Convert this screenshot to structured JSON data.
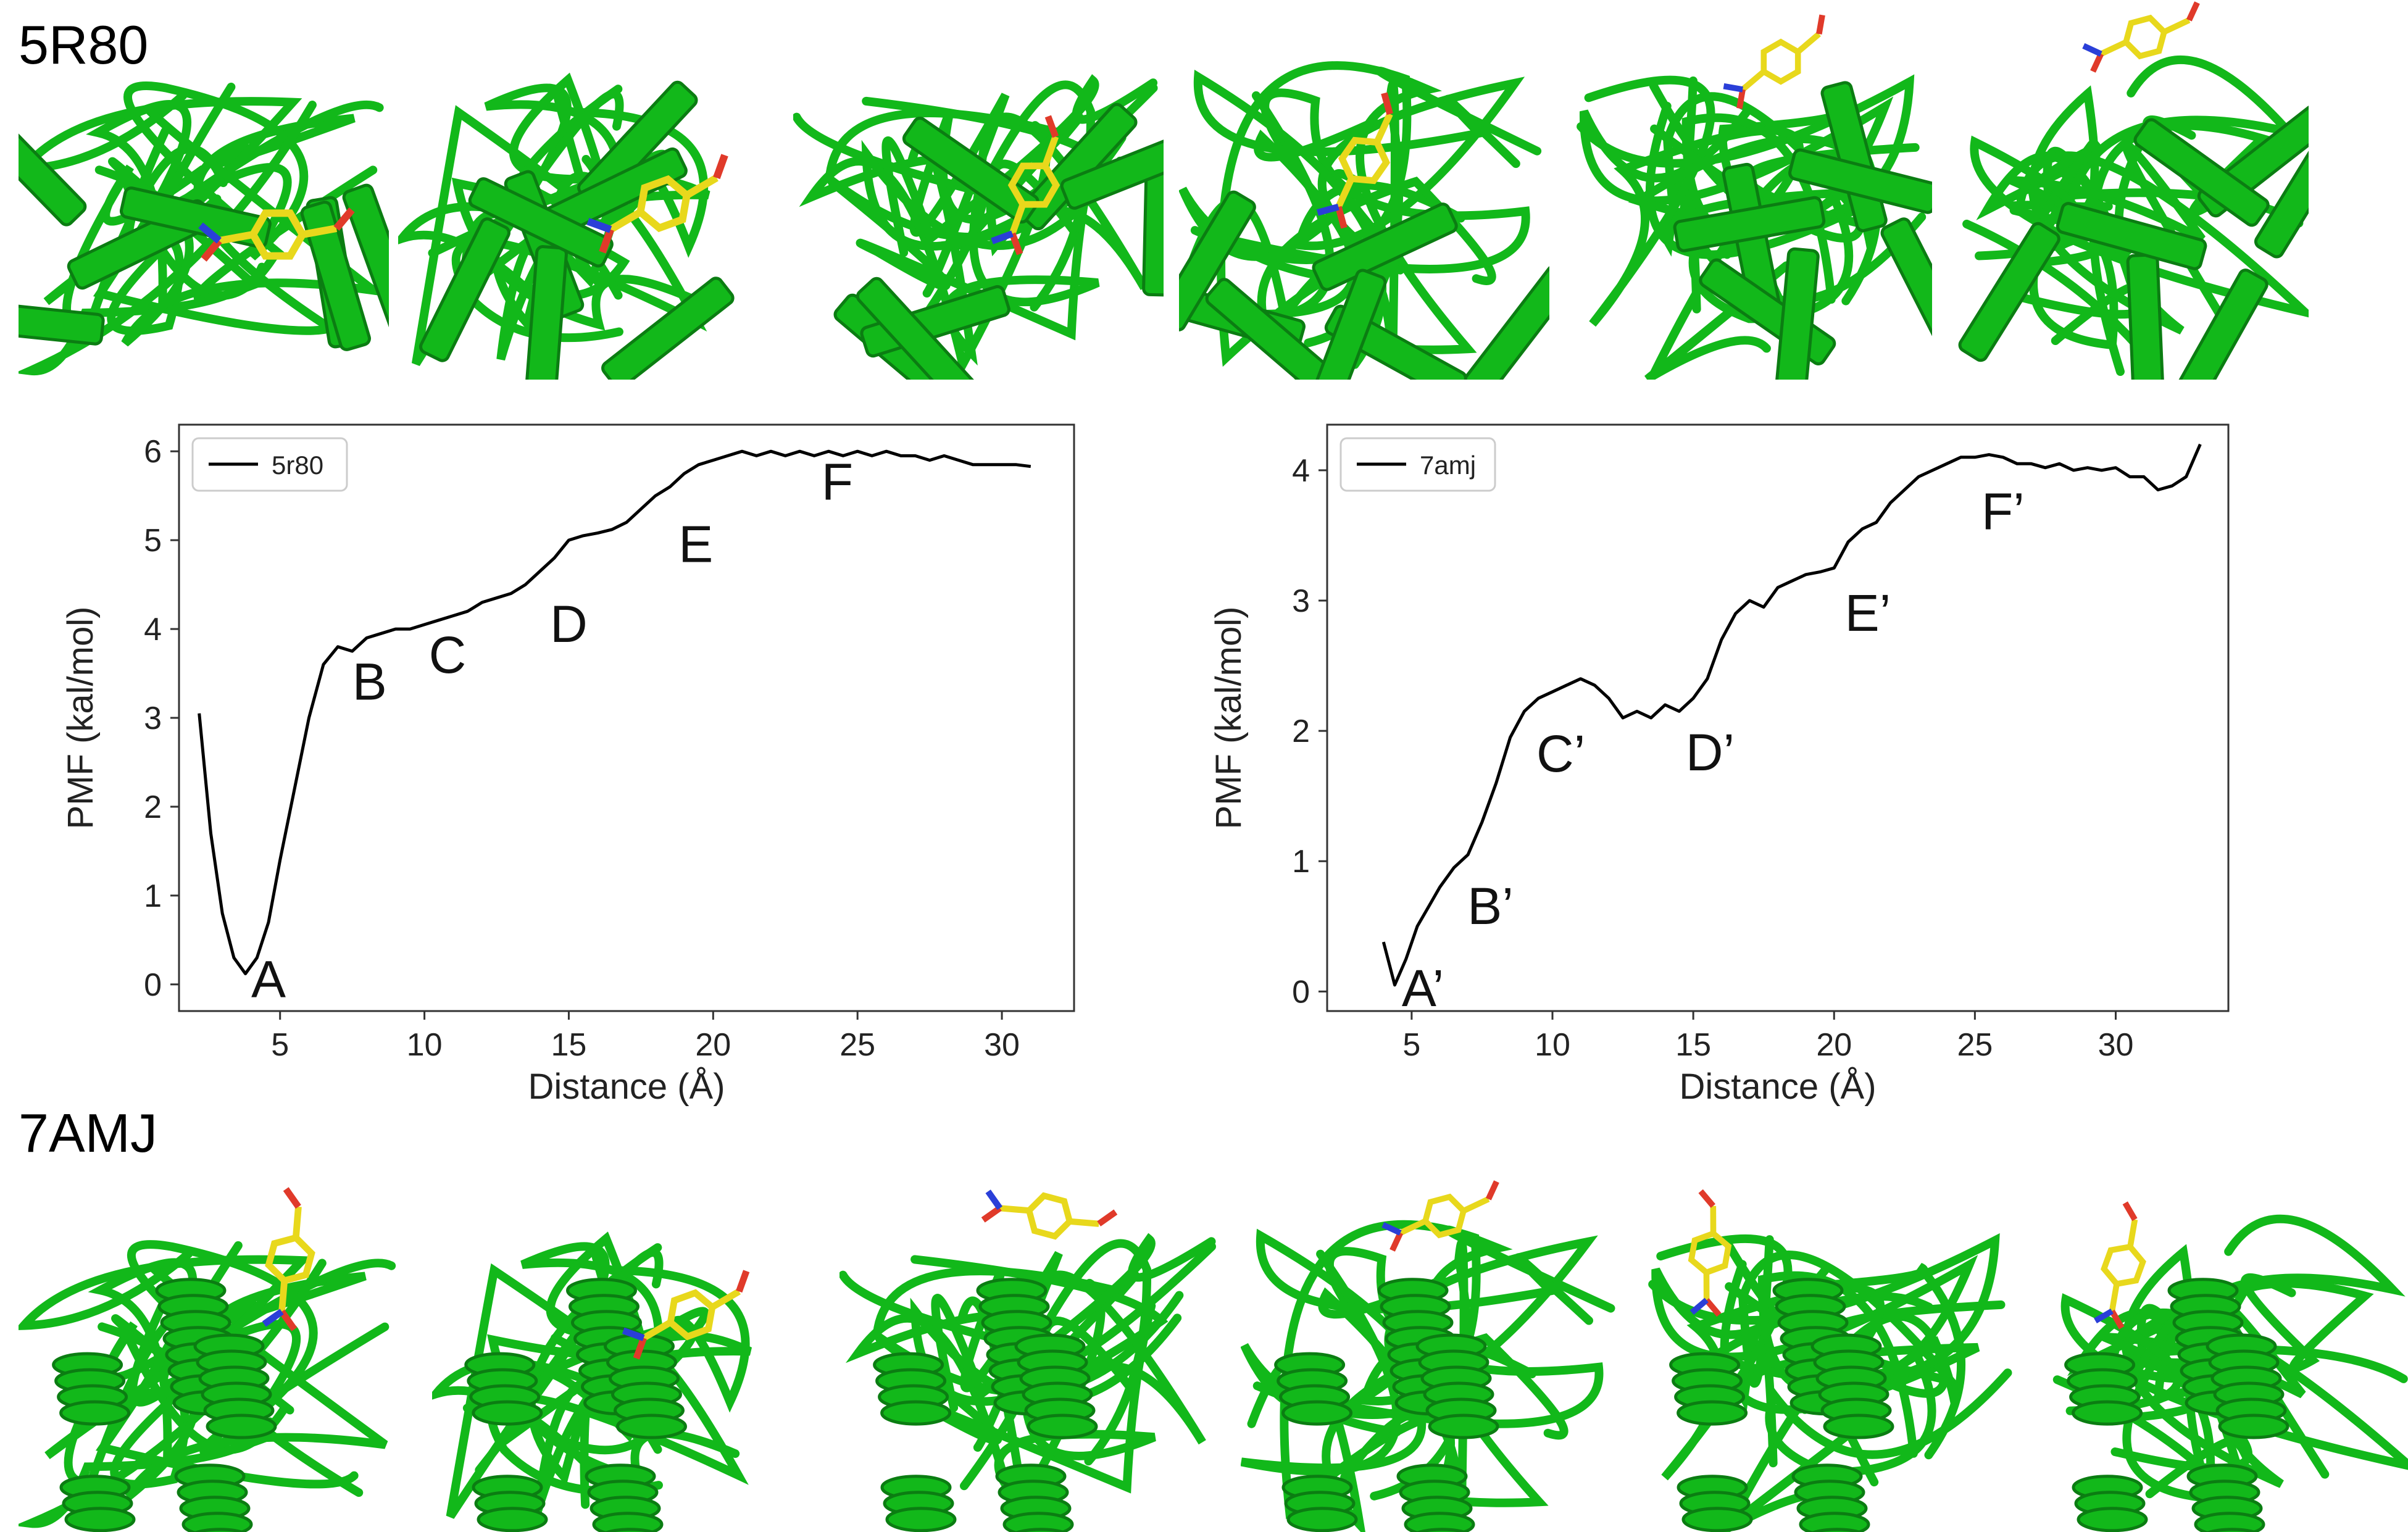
{
  "sections": {
    "top_label": "5R80",
    "bottom_label": "7AMJ"
  },
  "colors": {
    "protein": "#12b81a",
    "protein_dark": "#0b7d12",
    "ligand": "#e8d81c",
    "oxygen": "#e03a2a",
    "nitrogen": "#2a3fd8",
    "line": "#000000"
  },
  "structure_panels": {
    "top_count": 6,
    "bottom_count": 6,
    "top_ligand_visible": [
      true,
      true,
      true,
      true,
      true,
      true
    ],
    "bottom_ligand_visible": [
      true,
      true,
      true,
      true,
      true,
      true
    ]
  },
  "chart_data": [
    {
      "type": "line",
      "xlabel": "Distance (Å)",
      "ylabel": "PMF (kal/mol)",
      "xlim": [
        1.5,
        32.5
      ],
      "ylim": [
        -0.3,
        6.3
      ],
      "xticks": [
        5,
        10,
        15,
        20,
        25,
        30
      ],
      "yticks": [
        0,
        1,
        2,
        3,
        4,
        5,
        6
      ],
      "grid": false,
      "legend": "top-left",
      "series": [
        {
          "name": "5r80",
          "x": [
            2.2,
            2.6,
            3.0,
            3.4,
            3.8,
            4.2,
            4.6,
            5.0,
            5.5,
            6.0,
            6.5,
            7.0,
            7.5,
            8.0,
            8.5,
            9.0,
            9.5,
            10.0,
            10.5,
            11.0,
            11.5,
            12.0,
            12.5,
            13.0,
            13.5,
            14.0,
            14.5,
            15.0,
            15.5,
            16.0,
            16.5,
            17.0,
            17.5,
            18.0,
            18.5,
            19.0,
            19.5,
            20.0,
            20.5,
            21.0,
            21.5,
            22.0,
            22.5,
            23.0,
            23.5,
            24.0,
            24.5,
            25.0,
            25.5,
            26.0,
            26.5,
            27.0,
            27.5,
            28.0,
            28.5,
            29.0,
            29.5,
            30.0,
            30.5,
            31.0
          ],
          "values": [
            3.05,
            1.7,
            0.8,
            0.3,
            0.12,
            0.3,
            0.7,
            1.4,
            2.2,
            3.0,
            3.6,
            3.8,
            3.75,
            3.9,
            3.95,
            4.0,
            4.0,
            4.05,
            4.1,
            4.15,
            4.2,
            4.3,
            4.35,
            4.4,
            4.5,
            4.65,
            4.8,
            5.0,
            5.05,
            5.08,
            5.12,
            5.2,
            5.35,
            5.5,
            5.6,
            5.75,
            5.85,
            5.9,
            5.95,
            6.0,
            5.95,
            6.0,
            5.95,
            6.0,
            5.95,
            6.0,
            5.95,
            6.0,
            5.95,
            6.0,
            5.95,
            5.95,
            5.9,
            5.95,
            5.9,
            5.85,
            5.85,
            5.85,
            5.85,
            5.83
          ]
        }
      ],
      "annotations": [
        {
          "text": "A",
          "x": 4.6,
          "y": 0.05
        },
        {
          "text": "B",
          "x": 8.1,
          "y": 3.4
        },
        {
          "text": "C",
          "x": 10.8,
          "y": 3.7
        },
        {
          "text": "D",
          "x": 15.0,
          "y": 4.05
        },
        {
          "text": "E",
          "x": 19.4,
          "y": 4.95
        },
        {
          "text": "F",
          "x": 24.3,
          "y": 5.65
        }
      ]
    },
    {
      "type": "line",
      "xlabel": "Distance (Å)",
      "ylabel": "PMF (kal/mol)",
      "xlim": [
        2.0,
        34.0
      ],
      "ylim": [
        -0.15,
        4.35
      ],
      "xticks": [
        5,
        10,
        15,
        20,
        25,
        30
      ],
      "yticks": [
        0,
        1,
        2,
        3,
        4
      ],
      "grid": false,
      "legend": "top-left",
      "series": [
        {
          "name": "7amj",
          "x": [
            4.0,
            4.4,
            4.8,
            5.2,
            5.6,
            6.0,
            6.5,
            7.0,
            7.5,
            8.0,
            8.5,
            9.0,
            9.5,
            10.0,
            10.5,
            11.0,
            11.5,
            12.0,
            12.5,
            13.0,
            13.5,
            14.0,
            14.5,
            15.0,
            15.5,
            16.0,
            16.5,
            17.0,
            17.5,
            18.0,
            18.5,
            19.0,
            19.5,
            20.0,
            20.5,
            21.0,
            21.5,
            22.0,
            22.5,
            23.0,
            23.5,
            24.0,
            24.5,
            25.0,
            25.5,
            26.0,
            26.5,
            27.0,
            27.5,
            28.0,
            28.5,
            29.0,
            29.5,
            30.0,
            30.5,
            31.0,
            31.5,
            32.0,
            32.5,
            33.0
          ],
          "values": [
            0.38,
            0.05,
            0.25,
            0.5,
            0.65,
            0.8,
            0.95,
            1.05,
            1.3,
            1.6,
            1.95,
            2.15,
            2.25,
            2.3,
            2.35,
            2.4,
            2.35,
            2.25,
            2.1,
            2.15,
            2.1,
            2.2,
            2.15,
            2.25,
            2.4,
            2.7,
            2.9,
            3.0,
            2.95,
            3.1,
            3.15,
            3.2,
            3.22,
            3.25,
            3.45,
            3.55,
            3.6,
            3.75,
            3.85,
            3.95,
            4.0,
            4.05,
            4.1,
            4.1,
            4.12,
            4.1,
            4.05,
            4.05,
            4.02,
            4.05,
            4.0,
            4.02,
            4.0,
            4.02,
            3.95,
            3.95,
            3.85,
            3.88,
            3.95,
            4.2
          ]
        }
      ],
      "annotations": [
        {
          "text": "A’",
          "x": 5.4,
          "y": 0.02
        },
        {
          "text": "B’",
          "x": 7.8,
          "y": 0.65
        },
        {
          "text": "C’",
          "x": 10.3,
          "y": 1.82
        },
        {
          "text": "D’",
          "x": 15.6,
          "y": 1.83
        },
        {
          "text": "E’",
          "x": 21.2,
          "y": 2.9
        },
        {
          "text": "F’",
          "x": 26.0,
          "y": 3.68
        }
      ]
    }
  ]
}
